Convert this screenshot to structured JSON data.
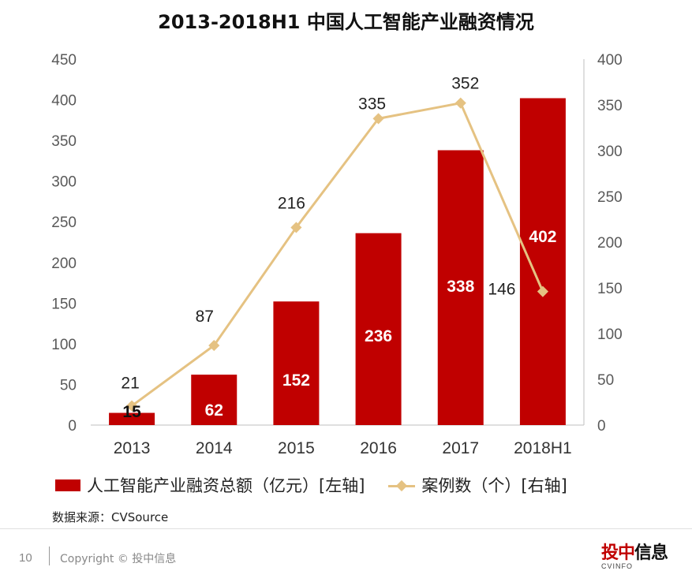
{
  "chart_data": {
    "type": "bar+line",
    "title": "2013-2018H1 中国人工智能产业融资情况",
    "categories": [
      "2013",
      "2014",
      "2015",
      "2016",
      "2017",
      "2018H1"
    ],
    "series": [
      {
        "name": "人工智能产业融资总额（亿元）[左轴]",
        "type": "bar",
        "axis": "left",
        "values": [
          15,
          62,
          152,
          236,
          338,
          402
        ],
        "color": "#c00000"
      },
      {
        "name": "案例数（个）[右轴]",
        "type": "line",
        "axis": "right",
        "values": [
          21,
          87,
          216,
          335,
          352,
          146
        ],
        "color": "#e5c282"
      }
    ],
    "y_left": {
      "ylim": [
        0,
        450
      ],
      "ticks": [
        "0",
        "50",
        "100",
        "150",
        "200",
        "250",
        "300",
        "350",
        "400",
        "450"
      ]
    },
    "y_right": {
      "ylim": [
        0,
        400
      ],
      "ticks": [
        "0",
        "50",
        "100",
        "150",
        "200",
        "250",
        "300",
        "350",
        "400"
      ]
    },
    "grid": false,
    "legend": "bottom"
  },
  "source": "数据来源：CVSource",
  "footer": {
    "page_number": "10",
    "copyright": "Copyright © 投中信息",
    "logo_text": "投中信息",
    "logo_sub": "CVINFO"
  }
}
